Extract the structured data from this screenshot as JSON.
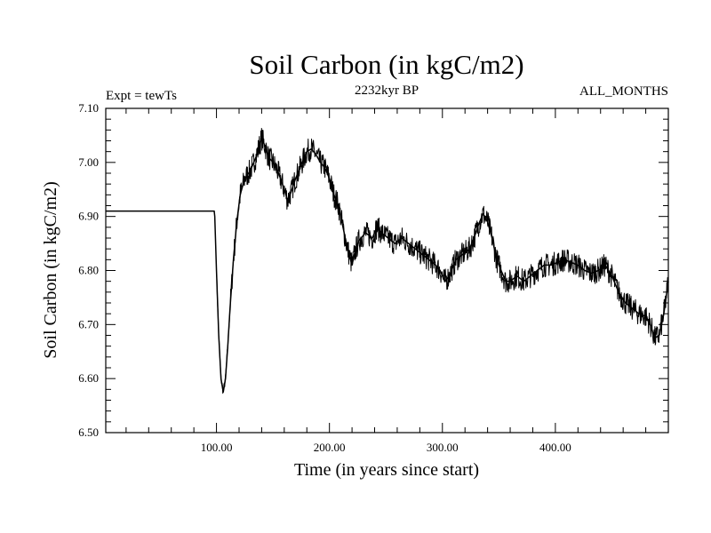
{
  "chart_data": {
    "type": "line",
    "title": "Soil Carbon (in kgC/m2)",
    "subtitle_left": "Expt = tewTs",
    "subtitle_center": "2232kyr BP",
    "subtitle_right": "ALL_MONTHS",
    "xlabel": "Time (in years since start)",
    "ylabel": "Soil Carbon (in kgC/m2)",
    "xlim": [
      2,
      500
    ],
    "ylim": [
      6.5,
      7.1
    ],
    "xticks": [
      100,
      200,
      300,
      400
    ],
    "xtick_labels": [
      "100.00",
      "200.00",
      "300.00",
      "400.00"
    ],
    "yticks": [
      6.5,
      6.6,
      6.7,
      6.8,
      6.9,
      7.0,
      7.1
    ],
    "ytick_labels": [
      "6.50",
      "6.60",
      "6.70",
      "6.80",
      "6.90",
      "7.00",
      "7.10"
    ],
    "line_color": "#000000",
    "series": [
      {
        "name": "Soil Carbon",
        "x": [
          2,
          98,
          98.5,
          100,
          102,
          104,
          106,
          108,
          110,
          112,
          115,
          118,
          121,
          125,
          130,
          135,
          140,
          143,
          146,
          150,
          155,
          160,
          163,
          166,
          170,
          175,
          180,
          184,
          188,
          192,
          196,
          200,
          204,
          208,
          212,
          216,
          220,
          222,
          226,
          232,
          238,
          242,
          246,
          252,
          258,
          264,
          270,
          276,
          282,
          288,
          294,
          298,
          302,
          306,
          312,
          318,
          324,
          328,
          332,
          336,
          340,
          344,
          348,
          352,
          356,
          360,
          366,
          372,
          378,
          384,
          390,
          396,
          402,
          408,
          414,
          420,
          426,
          432,
          438,
          444,
          450,
          456,
          462,
          468,
          474,
          480,
          484,
          488,
          492,
          496,
          500
        ],
        "y": [
          6.91,
          6.91,
          6.9,
          6.8,
          6.68,
          6.6,
          6.575,
          6.6,
          6.66,
          6.73,
          6.82,
          6.89,
          6.94,
          6.97,
          6.985,
          7.01,
          7.045,
          7.03,
          7.01,
          7.0,
          6.98,
          6.95,
          6.93,
          6.945,
          6.97,
          6.995,
          7.02,
          7.025,
          7.015,
          7.0,
          6.99,
          6.97,
          6.94,
          6.92,
          6.88,
          6.84,
          6.81,
          6.83,
          6.855,
          6.87,
          6.86,
          6.88,
          6.87,
          6.86,
          6.85,
          6.86,
          6.85,
          6.84,
          6.83,
          6.82,
          6.81,
          6.8,
          6.78,
          6.79,
          6.82,
          6.83,
          6.84,
          6.86,
          6.885,
          6.905,
          6.89,
          6.86,
          6.82,
          6.8,
          6.78,
          6.78,
          6.79,
          6.78,
          6.79,
          6.8,
          6.81,
          6.81,
          6.815,
          6.82,
          6.815,
          6.81,
          6.8,
          6.795,
          6.8,
          6.81,
          6.79,
          6.76,
          6.74,
          6.73,
          6.72,
          6.715,
          6.7,
          6.675,
          6.68,
          6.72,
          6.78
        ]
      }
    ]
  }
}
